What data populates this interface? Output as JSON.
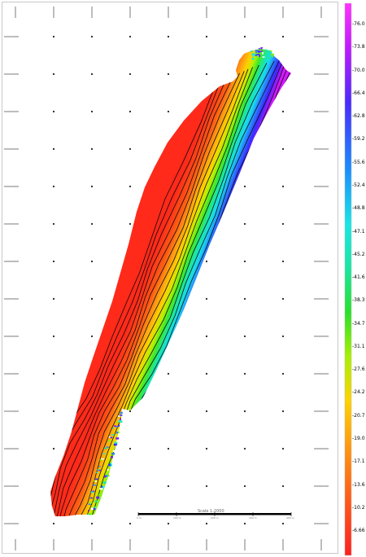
{
  "legend": {
    "colors": [
      "#ff2020",
      "#ff5a1a",
      "#ff9a10",
      "#ffd200",
      "#d6f000",
      "#7cf000",
      "#1ae030",
      "#1ae6a0",
      "#1ae6e6",
      "#1aa6ff",
      "#2a66ff",
      "#3a2aff",
      "#7a1aff",
      "#b21aff",
      "#e01aff",
      "#ff33ff"
    ],
    "labels": [
      "-76.0",
      "-73.8",
      "-70.0",
      "-66.4",
      "-62.8",
      "-59.2",
      "-55.6",
      "-52.4",
      "-48.8",
      "-47.1",
      "-45.2",
      "-41.6",
      "-38.3",
      "-34.7",
      "-31.1",
      "-27.6",
      "-24.2",
      "-20.7",
      "-19.0",
      "-17.1",
      "-13.6",
      "-10.2",
      "-6.66"
    ]
  },
  "scale": {
    "title": "Scale 1:2000",
    "ticks": [
      "0 m",
      "100 m",
      "200 m",
      "300 m",
      "400 m"
    ]
  }
}
